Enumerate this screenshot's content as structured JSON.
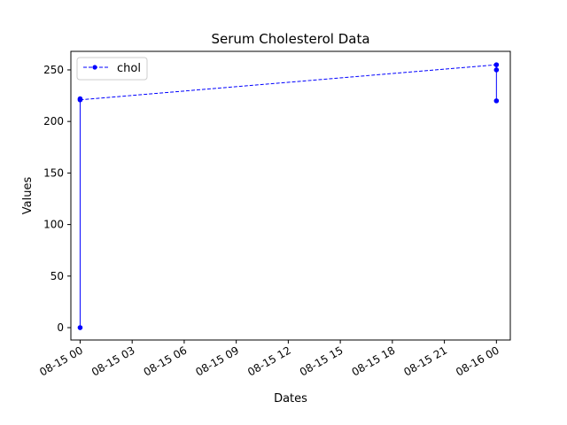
{
  "chart_data": {
    "type": "line",
    "title": "Serum Cholesterol Data",
    "xlabel": "Dates",
    "ylabel": "Values",
    "xlim": [
      "2019-08-14T23:28",
      "2019-08-16T00:48"
    ],
    "ylim": [
      -12,
      268
    ],
    "x_ticks": [
      "08-15 00",
      "08-15 03",
      "08-15 06",
      "08-15 09",
      "08-15 12",
      "08-15 15",
      "08-15 18",
      "08-15 21",
      "08-16 00"
    ],
    "y_ticks": [
      0,
      50,
      100,
      150,
      200,
      250
    ],
    "grid": false,
    "legend": {
      "position": "upper-left",
      "entries": [
        "chol"
      ]
    },
    "series": [
      {
        "name": "chol",
        "color": "#0000ff",
        "marker": "dot",
        "points": [
          {
            "x": "2019-08-15T00:00",
            "y": 0
          },
          {
            "x": "2019-08-15T00:00",
            "y": 222
          },
          {
            "x": "2019-08-15T00:00",
            "y": 221
          },
          {
            "x": "2019-08-16T00:00",
            "y": 255
          },
          {
            "x": "2019-08-16T00:00",
            "y": 250
          },
          {
            "x": "2019-08-16T00:00",
            "y": 220
          }
        ],
        "segment_styles": [
          "solid",
          "solid",
          "dashed",
          "solid",
          "solid"
        ]
      }
    ]
  }
}
